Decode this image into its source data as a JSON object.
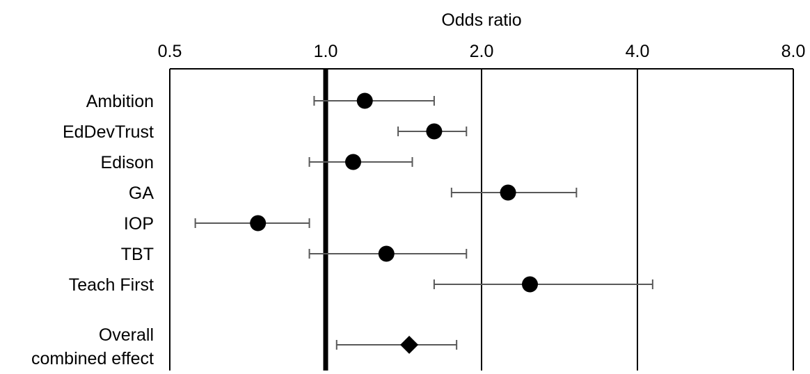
{
  "chart_data": {
    "type": "forest",
    "xlabel": "Odds ratio",
    "x_scale": "log2",
    "xlim": [
      0.5,
      8.0
    ],
    "x_ticks": [
      0.5,
      1.0,
      2.0,
      4.0,
      8.0
    ],
    "x_tick_labels": [
      "0.5",
      "1.0",
      "2.0",
      "4.0",
      "8.0"
    ],
    "reference_line": 1.0,
    "axis_position": "top",
    "grid": true,
    "rows": [
      {
        "label": "Ambition",
        "estimate": 1.19,
        "ci_low": 0.95,
        "ci_high": 1.62,
        "marker": "circle"
      },
      {
        "label": "EdDevTrust",
        "estimate": 1.62,
        "ci_low": 1.38,
        "ci_high": 1.87,
        "marker": "circle"
      },
      {
        "label": "Edison",
        "estimate": 1.13,
        "ci_low": 0.93,
        "ci_high": 1.47,
        "marker": "circle"
      },
      {
        "label": "GA",
        "estimate": 2.25,
        "ci_low": 1.75,
        "ci_high": 3.05,
        "marker": "circle"
      },
      {
        "label": "IOP",
        "estimate": 0.74,
        "ci_low": 0.56,
        "ci_high": 0.93,
        "marker": "circle"
      },
      {
        "label": "TBT",
        "estimate": 1.31,
        "ci_low": 0.93,
        "ci_high": 1.87,
        "marker": "circle"
      },
      {
        "label": "Teach First",
        "estimate": 2.48,
        "ci_low": 1.62,
        "ci_high": 4.28,
        "marker": "circle"
      },
      {
        "label": "Overall combined effect",
        "estimate": 1.45,
        "ci_low": 1.05,
        "ci_high": 1.79,
        "marker": "diamond"
      }
    ],
    "colors": {
      "marker": "#000000",
      "ci_line": "#595959",
      "grid": "#000000",
      "reference": "#000000"
    }
  }
}
